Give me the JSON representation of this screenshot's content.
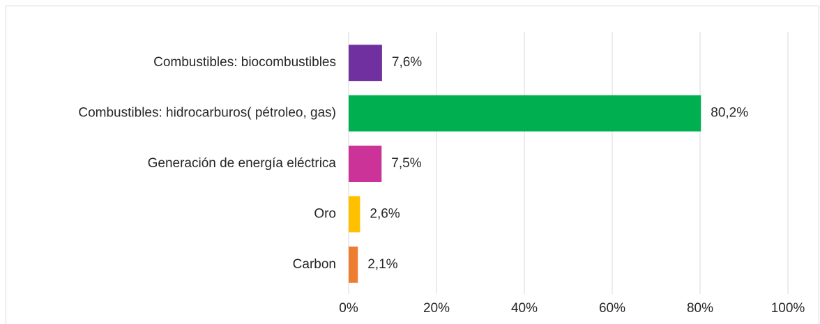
{
  "chart_data": {
    "type": "bar",
    "orientation": "horizontal",
    "categories": [
      "Combustibles: biocombustibles",
      "Combustibles: hidrocarburos( pétroleo, gas)",
      "Generación de energía eléctrica",
      "Oro",
      "Carbon"
    ],
    "values": [
      7.6,
      80.2,
      7.5,
      2.6,
      2.1
    ],
    "value_labels": [
      "7,6%",
      "80,2%",
      "7,5%",
      "2,6%",
      "2,1%"
    ],
    "colors": [
      "#7030a0",
      "#00b050",
      "#cc3399",
      "#ffc000",
      "#ed7d31"
    ],
    "xlim": [
      0,
      100
    ],
    "xticks": [
      {
        "value": 0,
        "label": "0%"
      },
      {
        "value": 20,
        "label": "20%"
      },
      {
        "value": 40,
        "label": "40%"
      },
      {
        "value": 60,
        "label": "60%"
      },
      {
        "value": 80,
        "label": "80%"
      },
      {
        "value": 100,
        "label": "100%"
      }
    ],
    "grid": true
  }
}
